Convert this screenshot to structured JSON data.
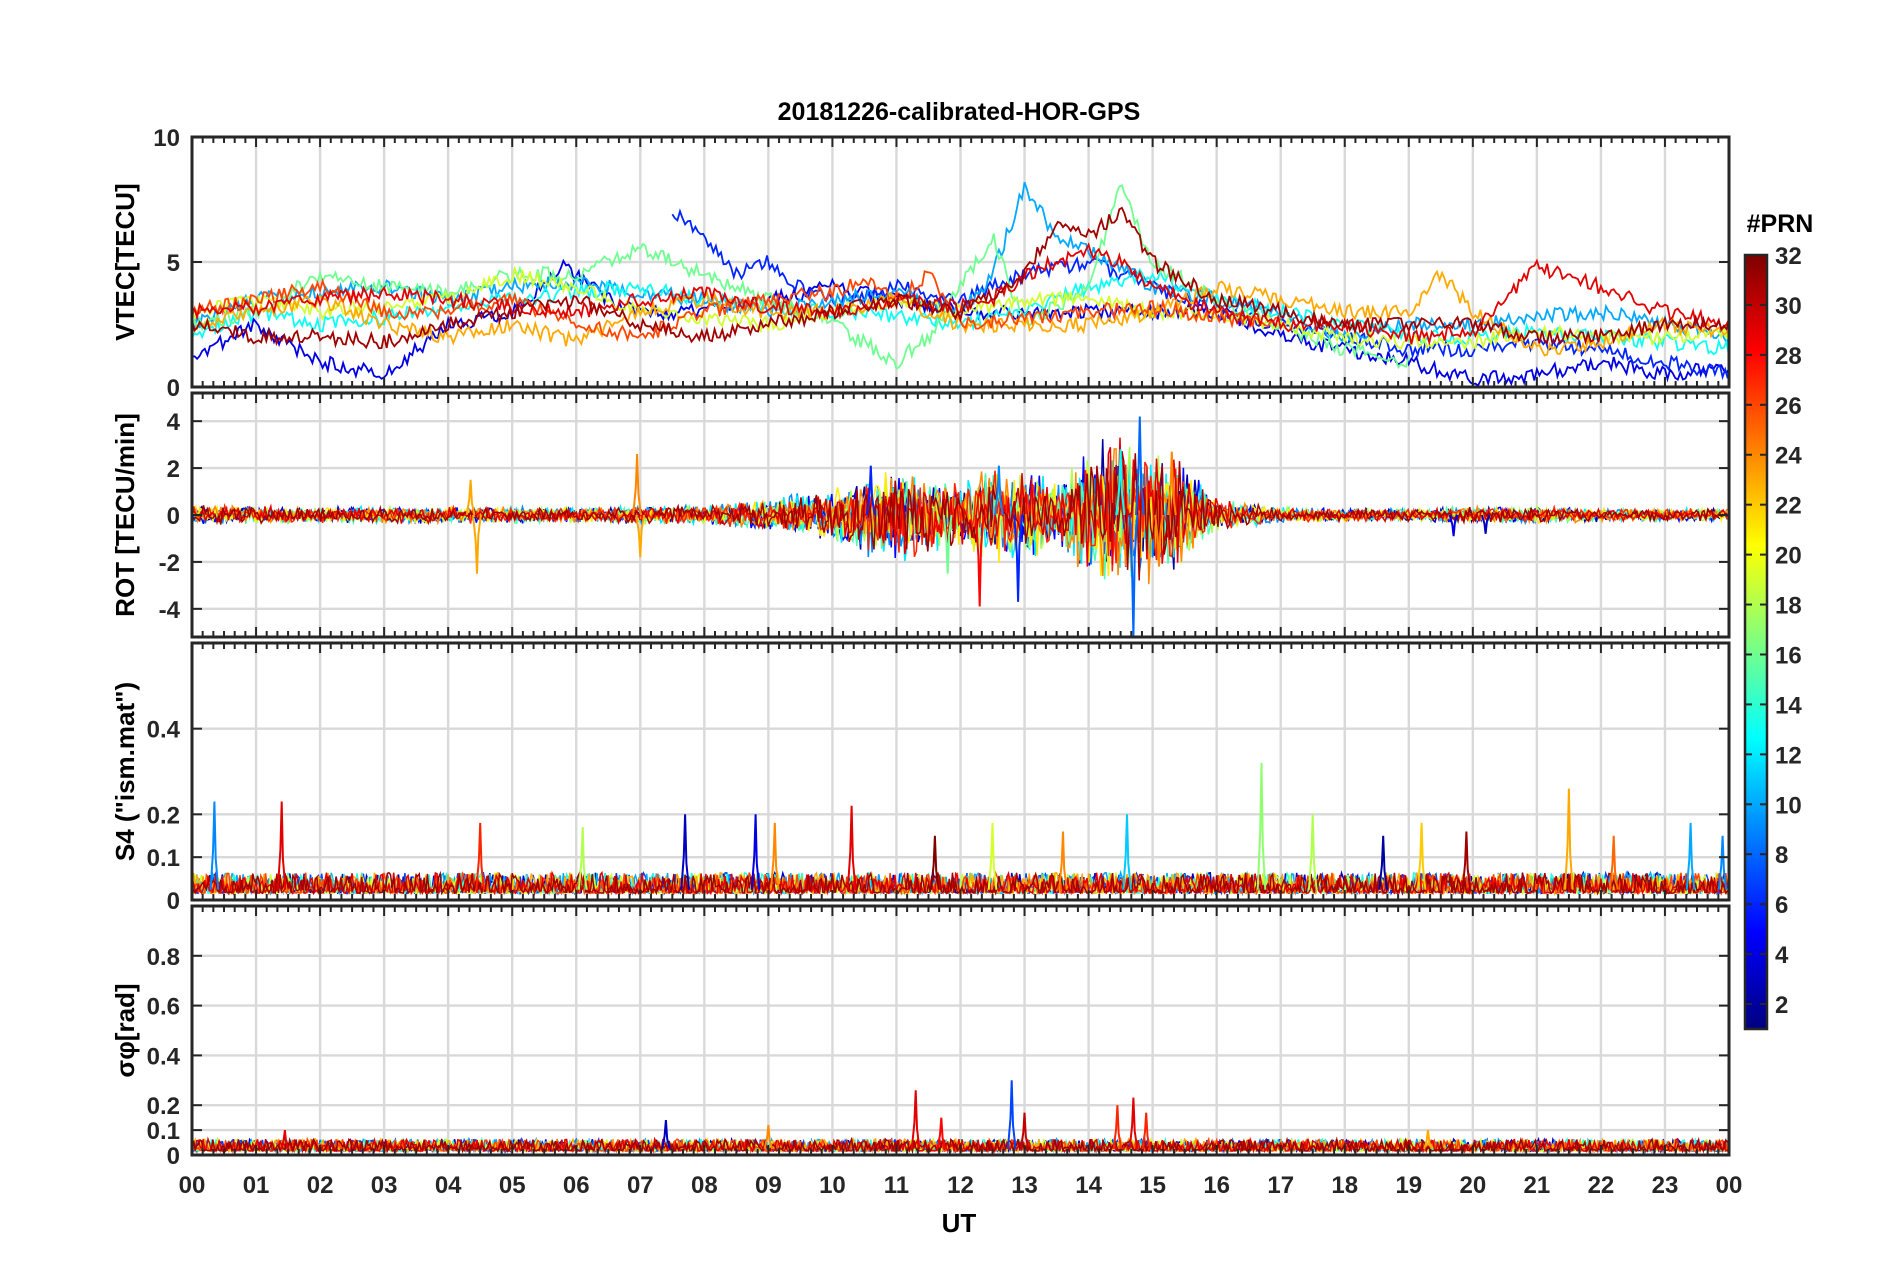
{
  "chart_data": {
    "type": "line",
    "title": "20181226-calibrated-HOR-GPS",
    "xlabel": "UT",
    "x_ticks": [
      "00",
      "01",
      "02",
      "03",
      "04",
      "05",
      "06",
      "07",
      "08",
      "09",
      "10",
      "11",
      "12",
      "13",
      "14",
      "15",
      "16",
      "17",
      "18",
      "19",
      "20",
      "21",
      "22",
      "23",
      "00"
    ],
    "xlim": [
      0,
      24
    ],
    "grid": true,
    "colorbar": {
      "title": "#PRN",
      "ticks": [
        "2",
        "4",
        "6",
        "8",
        "10",
        "12",
        "14",
        "16",
        "18",
        "20",
        "22",
        "24",
        "26",
        "28",
        "30",
        "32"
      ],
      "range": [
        1,
        32
      ],
      "colormap": "jet"
    },
    "panels": [
      {
        "ylabel": "VTEC[TECU]",
        "ylim": [
          0,
          10
        ],
        "y_ticks": [
          "0",
          "5",
          "10"
        ],
        "y_tick_values": [
          0,
          5,
          10
        ],
        "series": [
          {
            "prn": 4,
            "x": [
              0,
              1,
              2,
              3,
              4,
              5,
              5.8,
              6.5,
              7,
              8,
              9,
              10,
              11,
              12,
              13,
              14,
              15,
              16,
              17,
              18,
              19,
              20,
              21,
              22,
              23,
              24
            ],
            "values": [
              1.2,
              2.5,
              1.0,
              0.5,
              2.5,
              3.0,
              4.8,
              3.5,
              3.0,
              3.0,
              3.5,
              4.0,
              3.5,
              3.0,
              3.0,
              3.0,
              3.0,
              3.0,
              2.0,
              1.5,
              1.0,
              0.3,
              0.5,
              1.0,
              0.5,
              0.8
            ]
          },
          {
            "prn": 6,
            "x": [
              7.5,
              8,
              8.5,
              9,
              9.5,
              10,
              10.5,
              11,
              12,
              13,
              14,
              15,
              16,
              17,
              18,
              19,
              20,
              21,
              22,
              23,
              24
            ],
            "values": [
              7.0,
              6.0,
              4.5,
              5.0,
              4.0,
              3.5,
              3.5,
              4.0,
              3.5,
              4.5,
              5.0,
              4.0,
              3.0,
              2.5,
              2.0,
              1.5,
              1.5,
              1.8,
              1.5,
              1.0,
              0.5
            ]
          },
          {
            "prn": 10,
            "x": [
              0,
              1,
              2,
              3,
              4,
              5,
              6,
              7,
              8,
              9,
              10,
              11,
              12,
              12.5,
              13,
              13.5,
              14,
              15,
              16,
              17,
              18,
              19,
              20,
              21,
              22,
              23,
              24
            ],
            "values": [
              2.5,
              3.5,
              3.8,
              4.0,
              3.5,
              4.0,
              4.2,
              3.8,
              3.5,
              3.0,
              3.5,
              3.8,
              3.0,
              4.5,
              8.0,
              6.0,
              5.5,
              4.0,
              3.5,
              3.0,
              2.0,
              2.5,
              2.5,
              2.8,
              3.0,
              2.5,
              2.0
            ]
          },
          {
            "prn": 13,
            "x": [
              0,
              1,
              2,
              3,
              4,
              5,
              6,
              7,
              8,
              9,
              10,
              11,
              12,
              13,
              14,
              15,
              16,
              17,
              18,
              19,
              20,
              21,
              22,
              23,
              24
            ],
            "values": [
              2.0,
              3.0,
              2.5,
              2.8,
              3.2,
              3.5,
              3.8,
              4.0,
              3.5,
              3.2,
              3.0,
              2.8,
              2.5,
              3.0,
              4.0,
              4.5,
              3.5,
              3.0,
              2.5,
              2.0,
              2.0,
              2.2,
              2.0,
              1.8,
              1.5
            ]
          },
          {
            "prn": 16,
            "x": [
              0,
              1,
              2,
              3,
              4,
              5,
              6,
              7,
              8,
              9,
              10,
              11,
              11.5,
              12,
              12.5,
              13,
              14,
              14.5,
              15,
              16,
              17,
              18,
              19
            ],
            "values": [
              2.5,
              3.0,
              4.5,
              4.0,
              3.8,
              4.5,
              4.5,
              5.5,
              4.5,
              3.5,
              2.5,
              1.0,
              2.0,
              4.0,
              6.0,
              2.5,
              4.0,
              8.0,
              5.0,
              3.5,
              2.5,
              1.5,
              1.0
            ]
          },
          {
            "prn": 19,
            "x": [
              0,
              1,
              2,
              3,
              4,
              5,
              6,
              7,
              8,
              9,
              10,
              11,
              12,
              13,
              14,
              15,
              16,
              17,
              18,
              19,
              20,
              21,
              22,
              23,
              24
            ],
            "values": [
              3.0,
              3.5,
              3.0,
              3.2,
              3.5,
              4.5,
              4.0,
              3.0,
              2.8,
              2.5,
              3.0,
              3.5,
              3.0,
              3.5,
              3.5,
              3.0,
              3.0,
              2.5,
              2.0,
              1.8,
              1.8,
              2.2,
              2.0,
              2.0,
              2.2
            ]
          },
          {
            "prn": 23,
            "x": [
              0,
              1,
              2,
              3,
              4,
              5,
              6,
              7,
              8,
              9,
              10,
              11,
              12,
              13,
              14,
              15,
              16,
              17,
              18,
              19,
              19.5,
              20,
              21,
              22,
              23,
              24
            ],
            "values": [
              2.5,
              3.0,
              3.5,
              2.5,
              2.0,
              2.5,
              1.8,
              3.0,
              3.5,
              3.0,
              3.0,
              3.5,
              2.5,
              2.5,
              2.5,
              3.0,
              4.0,
              3.5,
              3.0,
              3.0,
              4.6,
              3.0,
              1.5,
              1.8,
              2.5,
              2.2
            ]
          },
          {
            "prn": 26,
            "x": [
              0,
              1,
              2,
              3,
              4,
              5,
              6,
              7,
              8,
              9,
              10,
              10.5,
              11,
              11.5,
              12,
              13,
              14,
              15,
              16,
              17
            ],
            "values": [
              3.0,
              3.5,
              4.0,
              3.0,
              3.0,
              3.5,
              2.5,
              2.0,
              3.0,
              3.5,
              3.8,
              4.2,
              3.5,
              4.5,
              2.5,
              2.8,
              3.0,
              3.2,
              2.8,
              2.5
            ]
          },
          {
            "prn": 29,
            "x": [
              0,
              1,
              2,
              3,
              4,
              5,
              6,
              7,
              8,
              9,
              10,
              11,
              12,
              12.5,
              13,
              13.5,
              14,
              14.5,
              15,
              15.5,
              16,
              17,
              18,
              19,
              20,
              21,
              22,
              23,
              24
            ],
            "values": [
              3.0,
              3.2,
              3.5,
              3.8,
              3.5,
              3.2,
              3.0,
              3.5,
              3.8,
              3.2,
              3.0,
              3.5,
              3.2,
              3.5,
              4.5,
              5.0,
              5.5,
              5.0,
              4.0,
              3.5,
              3.0,
              2.5,
              2.5,
              2.0,
              2.2,
              4.8,
              4.0,
              3.0,
              2.5
            ]
          },
          {
            "prn": 31,
            "x": [
              0,
              1,
              2,
              3,
              4,
              5,
              6,
              7,
              8,
              9,
              10,
              11,
              12,
              13,
              13.5,
              14,
              14.5,
              15,
              16,
              17,
              18,
              19,
              20,
              21,
              22,
              23,
              24
            ],
            "values": [
              2.5,
              2.0,
              2.0,
              1.8,
              2.5,
              3.0,
              3.5,
              2.5,
              2.0,
              2.5,
              3.0,
              3.5,
              3.0,
              4.5,
              6.5,
              6.0,
              7.0,
              5.0,
              3.5,
              3.0,
              2.5,
              2.5,
              2.5,
              2.0,
              2.0,
              2.5,
              2.5
            ]
          }
        ]
      },
      {
        "ylabel": "ROT [TECU/min]",
        "ylim": [
          -5.2,
          5.2
        ],
        "y_ticks": [
          "-4",
          "-2",
          "0",
          "2",
          "4"
        ],
        "y_tick_values": [
          -4,
          -2,
          0,
          2,
          4
        ],
        "activity_profile": {
          "x": [
            0,
            2,
            4,
            6,
            8,
            9,
            10,
            10.5,
            11,
            11.5,
            12,
            12.5,
            13,
            13.5,
            14,
            14.5,
            15,
            15.5,
            16,
            17,
            18,
            19,
            20,
            21,
            22,
            23,
            24
          ],
          "amplitude": [
            0.3,
            0.25,
            0.25,
            0.25,
            0.3,
            0.5,
            0.8,
            1.2,
            1.5,
            1.2,
            1.0,
            1.5,
            1.5,
            1.0,
            2.0,
            2.5,
            2.2,
            1.5,
            0.5,
            0.25,
            0.2,
            0.2,
            0.25,
            0.25,
            0.2,
            0.2,
            0.2
          ]
        },
        "spikes": [
          {
            "x": 4.35,
            "value": 1.5,
            "prn": 23
          },
          {
            "x": 4.45,
            "value": -2.5,
            "prn": 23
          },
          {
            "x": 6.95,
            "value": 2.6,
            "prn": 24
          },
          {
            "x": 7.0,
            "value": -1.8,
            "prn": 23
          },
          {
            "x": 10.6,
            "value": 2.1,
            "prn": 6
          },
          {
            "x": 11.8,
            "value": -2.5,
            "prn": 16
          },
          {
            "x": 12.3,
            "value": -3.9,
            "prn": 28
          },
          {
            "x": 12.6,
            "value": 2.1,
            "prn": 9
          },
          {
            "x": 12.9,
            "value": -3.7,
            "prn": 6
          },
          {
            "x": 14.5,
            "value": 2.8,
            "prn": 13
          },
          {
            "x": 14.8,
            "value": 4.2,
            "prn": 8
          },
          {
            "x": 14.7,
            "value": -5.2,
            "prn": 8
          },
          {
            "x": 15.3,
            "value": 2.7,
            "prn": 24
          },
          {
            "x": 15.1,
            "value": -2.2,
            "prn": 24
          },
          {
            "x": 19.7,
            "value": -0.9,
            "prn": 4
          },
          {
            "x": 20.2,
            "value": -0.8,
            "prn": 3
          }
        ]
      },
      {
        "ylabel": "S4 (\"ism.mat\")",
        "ylim": [
          0,
          0.6
        ],
        "y_ticks": [
          "0",
          "0.1",
          "0.2",
          "0.4"
        ],
        "y_tick_values": [
          0,
          0.1,
          0.2,
          0.4
        ],
        "baseline": 0.04,
        "spikes": [
          {
            "x": 0.35,
            "value": 0.23,
            "prn": 9
          },
          {
            "x": 1.4,
            "value": 0.23,
            "prn": 29
          },
          {
            "x": 4.5,
            "value": 0.18,
            "prn": 27
          },
          {
            "x": 6.1,
            "value": 0.17,
            "prn": 18
          },
          {
            "x": 7.7,
            "value": 0.2,
            "prn": 3
          },
          {
            "x": 8.8,
            "value": 0.2,
            "prn": 4
          },
          {
            "x": 9.1,
            "value": 0.18,
            "prn": 24
          },
          {
            "x": 10.3,
            "value": 0.22,
            "prn": 29
          },
          {
            "x": 11.6,
            "value": 0.15,
            "prn": 32
          },
          {
            "x": 12.5,
            "value": 0.18,
            "prn": 19
          },
          {
            "x": 13.6,
            "value": 0.16,
            "prn": 24
          },
          {
            "x": 14.6,
            "value": 0.2,
            "prn": 11
          },
          {
            "x": 16.7,
            "value": 0.32,
            "prn": 17
          },
          {
            "x": 17.5,
            "value": 0.2,
            "prn": 18
          },
          {
            "x": 18.6,
            "value": 0.15,
            "prn": 2
          },
          {
            "x": 19.2,
            "value": 0.18,
            "prn": 22
          },
          {
            "x": 19.9,
            "value": 0.16,
            "prn": 31
          },
          {
            "x": 21.5,
            "value": 0.26,
            "prn": 23
          },
          {
            "x": 22.2,
            "value": 0.15,
            "prn": 25
          },
          {
            "x": 23.4,
            "value": 0.18,
            "prn": 10
          },
          {
            "x": 23.9,
            "value": 0.15,
            "prn": 9
          }
        ]
      },
      {
        "ylabel": "σφ[rad]",
        "ylim": [
          0,
          1
        ],
        "y_ticks": [
          "0",
          "0.1",
          "0.2",
          "0.4",
          "0.6",
          "0.8"
        ],
        "y_tick_values": [
          0,
          0.1,
          0.2,
          0.4,
          0.6,
          0.8
        ],
        "baseline": 0.04,
        "spikes": [
          {
            "x": 1.45,
            "value": 0.1,
            "prn": 29
          },
          {
            "x": 7.4,
            "value": 0.14,
            "prn": 3
          },
          {
            "x": 9.0,
            "value": 0.12,
            "prn": 24
          },
          {
            "x": 11.3,
            "value": 0.26,
            "prn": 29
          },
          {
            "x": 11.7,
            "value": 0.15,
            "prn": 28
          },
          {
            "x": 12.8,
            "value": 0.3,
            "prn": 7
          },
          {
            "x": 13.0,
            "value": 0.17,
            "prn": 30
          },
          {
            "x": 14.45,
            "value": 0.2,
            "prn": 27
          },
          {
            "x": 14.7,
            "value": 0.23,
            "prn": 29
          },
          {
            "x": 14.9,
            "value": 0.17,
            "prn": 27
          },
          {
            "x": 19.3,
            "value": 0.1,
            "prn": 23
          }
        ]
      }
    ]
  }
}
